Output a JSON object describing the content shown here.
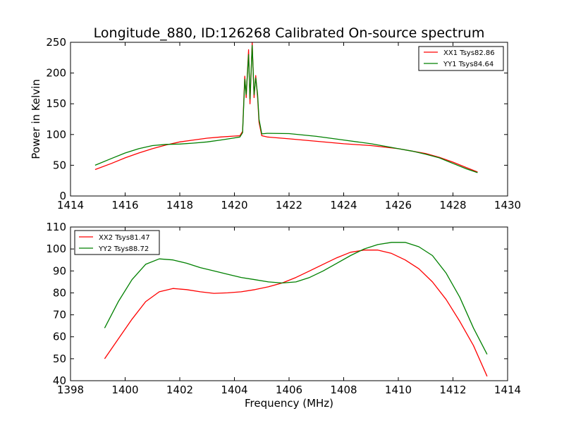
{
  "chart_data": [
    {
      "type": "line",
      "title": "Longitude_880, ID:126268 Calibrated On-source spectrum",
      "xlabel": "",
      "ylabel": "Power in Kelvin",
      "xlim": [
        1414,
        1430
      ],
      "ylim": [
        0,
        250
      ],
      "xticks": [
        "1414",
        "1416",
        "1418",
        "1420",
        "1422",
        "1424",
        "1426",
        "1428",
        "1430"
      ],
      "yticks": [
        "0",
        "50",
        "100",
        "150",
        "200",
        "250"
      ],
      "legend_position": "top-right",
      "grid": false,
      "series": [
        {
          "name": "XX1 Tsys82.86",
          "color": "#ff0000",
          "points": [
            [
              1414.9,
              43
            ],
            [
              1415.5,
              53
            ],
            [
              1416,
              62
            ],
            [
              1416.5,
              70
            ],
            [
              1417,
              77
            ],
            [
              1417.5,
              83
            ],
            [
              1418,
              88
            ],
            [
              1418.5,
              91
            ],
            [
              1419,
              94
            ],
            [
              1419.5,
              96
            ],
            [
              1420,
              97.5
            ],
            [
              1420.2,
              98
            ],
            [
              1420.3,
              105
            ],
            [
              1420.38,
              195
            ],
            [
              1420.43,
              160
            ],
            [
              1420.52,
              238
            ],
            [
              1420.57,
              150
            ],
            [
              1420.65,
              250
            ],
            [
              1420.72,
              160
            ],
            [
              1420.78,
              196
            ],
            [
              1420.85,
              160
            ],
            [
              1420.9,
              120
            ],
            [
              1421,
              98
            ],
            [
              1421.2,
              96
            ],
            [
              1422,
              93
            ],
            [
              1423,
              89
            ],
            [
              1424,
              85
            ],
            [
              1425,
              82
            ],
            [
              1426,
              77
            ],
            [
              1426.5,
              73
            ],
            [
              1427,
              69
            ],
            [
              1427.5,
              63
            ],
            [
              1428,
              55
            ],
            [
              1428.5,
              46
            ],
            [
              1428.9,
              39
            ]
          ]
        },
        {
          "name": "YY1 Tsys84.64",
          "color": "#008000",
          "points": [
            [
              1414.9,
              50
            ],
            [
              1415.5,
              61
            ],
            [
              1416,
              70
            ],
            [
              1416.5,
              77
            ],
            [
              1417,
              82
            ],
            [
              1417.5,
              84
            ],
            [
              1418,
              84.5
            ],
            [
              1418.5,
              86
            ],
            [
              1419,
              88
            ],
            [
              1419.5,
              91
            ],
            [
              1420,
              94.5
            ],
            [
              1420.2,
              96
            ],
            [
              1420.3,
              103
            ],
            [
              1420.38,
              190
            ],
            [
              1420.43,
              165
            ],
            [
              1420.52,
              230
            ],
            [
              1420.57,
              158
            ],
            [
              1420.65,
              245
            ],
            [
              1420.72,
              165
            ],
            [
              1420.78,
              192
            ],
            [
              1420.85,
              165
            ],
            [
              1420.9,
              125
            ],
            [
              1421,
              101
            ],
            [
              1421.2,
              102
            ],
            [
              1422,
              101.5
            ],
            [
              1423,
              97
            ],
            [
              1424,
              91
            ],
            [
              1425,
              85
            ],
            [
              1426,
              77
            ],
            [
              1426.5,
              73
            ],
            [
              1427,
              68
            ],
            [
              1427.5,
              62
            ],
            [
              1428,
              53
            ],
            [
              1428.5,
              44
            ],
            [
              1428.9,
              38
            ]
          ]
        }
      ]
    },
    {
      "type": "line",
      "title": "",
      "xlabel": "Frequency (MHz)",
      "ylabel": "",
      "xlim": [
        1398,
        1414
      ],
      "ylim": [
        40,
        110
      ],
      "xticks": [
        "1398",
        "1400",
        "1402",
        "1404",
        "1406",
        "1408",
        "1410",
        "1412",
        "1414"
      ],
      "yticks": [
        "40",
        "50",
        "60",
        "70",
        "80",
        "90",
        "100",
        "110"
      ],
      "legend_position": "top-left",
      "grid": false,
      "series": [
        {
          "name": "XX2 Tsys81.47",
          "color": "#ff0000",
          "points": [
            [
              1399.25,
              50
            ],
            [
              1399.75,
              59
            ],
            [
              1400.25,
              68
            ],
            [
              1400.75,
              76
            ],
            [
              1401.25,
              80.5
            ],
            [
              1401.75,
              82
            ],
            [
              1402.25,
              81.5
            ],
            [
              1402.75,
              80.5
            ],
            [
              1403.25,
              79.8
            ],
            [
              1403.75,
              80
            ],
            [
              1404.25,
              80.5
            ],
            [
              1404.75,
              81.5
            ],
            [
              1405.25,
              82.8
            ],
            [
              1405.75,
              84.5
            ],
            [
              1406.25,
              87
            ],
            [
              1406.75,
              90
            ],
            [
              1407.25,
              93
            ],
            [
              1407.75,
              96
            ],
            [
              1408.25,
              98.5
            ],
            [
              1408.75,
              99.5
            ],
            [
              1409.25,
              99.5
            ],
            [
              1409.75,
              98
            ],
            [
              1410.25,
              95
            ],
            [
              1410.75,
              91
            ],
            [
              1411.25,
              85
            ],
            [
              1411.75,
              77
            ],
            [
              1412.25,
              67
            ],
            [
              1412.75,
              56
            ],
            [
              1413.25,
              42
            ]
          ]
        },
        {
          "name": "YY2 Tsys88.72",
          "color": "#008000",
          "points": [
            [
              1399.25,
              64
            ],
            [
              1399.75,
              76
            ],
            [
              1400.25,
              86
            ],
            [
              1400.75,
              93
            ],
            [
              1401.25,
              95.5
            ],
            [
              1401.75,
              95
            ],
            [
              1402.25,
              93.5
            ],
            [
              1402.75,
              91.5
            ],
            [
              1403.25,
              90
            ],
            [
              1403.75,
              88.5
            ],
            [
              1404.25,
              87
            ],
            [
              1404.75,
              86
            ],
            [
              1405.25,
              85
            ],
            [
              1405.75,
              84.5
            ],
            [
              1406.25,
              85
            ],
            [
              1406.75,
              87
            ],
            [
              1407.25,
              90
            ],
            [
              1407.75,
              93.5
            ],
            [
              1408.25,
              97
            ],
            [
              1408.75,
              100
            ],
            [
              1409.25,
              102
            ],
            [
              1409.75,
              103
            ],
            [
              1410.25,
              103
            ],
            [
              1410.75,
              101
            ],
            [
              1411.25,
              97
            ],
            [
              1411.75,
              89
            ],
            [
              1412.25,
              78
            ],
            [
              1412.75,
              64
            ],
            [
              1413.25,
              52
            ]
          ]
        }
      ]
    }
  ]
}
